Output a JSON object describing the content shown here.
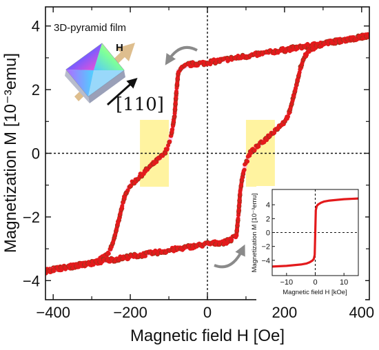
{
  "chart_data": [
    {
      "type": "scatter",
      "panel": "main",
      "xlabel": "Magnetic field H [Oe]",
      "ylabel": "Magnetization M [10⁻³emu]",
      "xlim": [
        -420,
        420
      ],
      "ylim": [
        -4.6,
        4.6
      ],
      "x_ticks": [
        -400,
        -200,
        0,
        200,
        400
      ],
      "y_ticks": [
        -4,
        -2,
        0,
        2,
        4
      ],
      "x_tick_labels": [
        "−400",
        "−200",
        "0",
        "200",
        "400"
      ],
      "y_tick_labels": [
        "−4",
        "−2",
        "0",
        "2",
        "4"
      ],
      "grid": false,
      "zero_lines": true,
      "marker_color": "#e31a1c",
      "marker_edge_color": "#8b3a1a",
      "highlight_color": "#fff3a0",
      "highlight_regions": [
        {
          "x": [
            -175,
            -100
          ],
          "y": [
            -1.05,
            1.05
          ]
        },
        {
          "x": [
            100,
            175
          ],
          "y": [
            -1.05,
            1.05
          ]
        }
      ],
      "series": [
        {
          "branch": "descending",
          "x": [
            420,
            400,
            350,
            300,
            250,
            200,
            150,
            100,
            50,
            0,
            -50,
            -75,
            -80,
            -85,
            -90,
            -95,
            -100,
            -105,
            -110,
            -120,
            -140,
            -160,
            -180,
            -200,
            -210,
            -220,
            -230,
            -240,
            -250,
            -260,
            -280,
            -300,
            -350,
            -400,
            -420
          ],
          "y": [
            3.7,
            3.65,
            3.55,
            3.45,
            3.35,
            3.25,
            3.15,
            3.05,
            2.95,
            2.85,
            2.78,
            2.6,
            2.0,
            1.2,
            0.8,
            0.5,
            0.3,
            0.15,
            0.0,
            -0.12,
            -0.32,
            -0.55,
            -0.78,
            -1.0,
            -1.2,
            -1.6,
            -2.1,
            -2.6,
            -3.0,
            -3.2,
            -3.35,
            -3.45,
            -3.55,
            -3.65,
            -3.7
          ]
        },
        {
          "branch": "ascending",
          "x": [
            -420,
            -400,
            -350,
            -300,
            -250,
            -200,
            -150,
            -100,
            -50,
            0,
            50,
            75,
            80,
            85,
            90,
            95,
            100,
            105,
            110,
            120,
            140,
            160,
            180,
            200,
            210,
            220,
            230,
            240,
            250,
            260,
            280,
            300,
            350,
            400,
            420
          ],
          "y": [
            -3.7,
            -3.65,
            -3.55,
            -3.45,
            -3.35,
            -3.25,
            -3.15,
            -3.05,
            -2.95,
            -2.85,
            -2.78,
            -2.6,
            -2.0,
            -1.2,
            -0.8,
            -0.5,
            -0.3,
            -0.15,
            0.0,
            0.12,
            0.32,
            0.55,
            0.78,
            1.0,
            1.2,
            1.6,
            2.1,
            2.6,
            3.0,
            3.2,
            3.35,
            3.45,
            3.55,
            3.65,
            3.7
          ]
        }
      ]
    },
    {
      "type": "line",
      "panel": "inset",
      "xlabel": "Magnetic field H [kOe]",
      "ylabel": "Magnetization M [10⁻³emu]",
      "xlim": [
        -15,
        15
      ],
      "ylim": [
        -6.2,
        6.2
      ],
      "x_ticks": [
        -10,
        0,
        10
      ],
      "y_ticks": [
        -4,
        -2,
        0,
        2,
        4
      ],
      "x_tick_labels": [
        "−10",
        "0",
        "10"
      ],
      "y_tick_labels": [
        "−4",
        "−2",
        "0",
        "2",
        "4"
      ],
      "zero_lines": true,
      "line_color": "#e31a1c",
      "series": [
        {
          "x": [
            -15,
            -10,
            -5,
            -3,
            -2,
            -1,
            -0.5,
            -0.2,
            0,
            0.2,
            0.5,
            1,
            2,
            3,
            5,
            10,
            15
          ],
          "y": [
            -4.9,
            -4.8,
            -4.6,
            -4.45,
            -4.3,
            -4.05,
            -3.8,
            -3.2,
            0,
            3.2,
            3.8,
            4.05,
            4.3,
            4.45,
            4.6,
            4.8,
            4.9
          ]
        }
      ]
    }
  ],
  "annotations": {
    "sample_label": "3D-pyramid film",
    "field_label": "H",
    "direction_label": "[110]"
  },
  "colors": {
    "axes": "#111111",
    "arrow_gray": "#8a8a8a",
    "field_arrow": "#d8b37a"
  }
}
